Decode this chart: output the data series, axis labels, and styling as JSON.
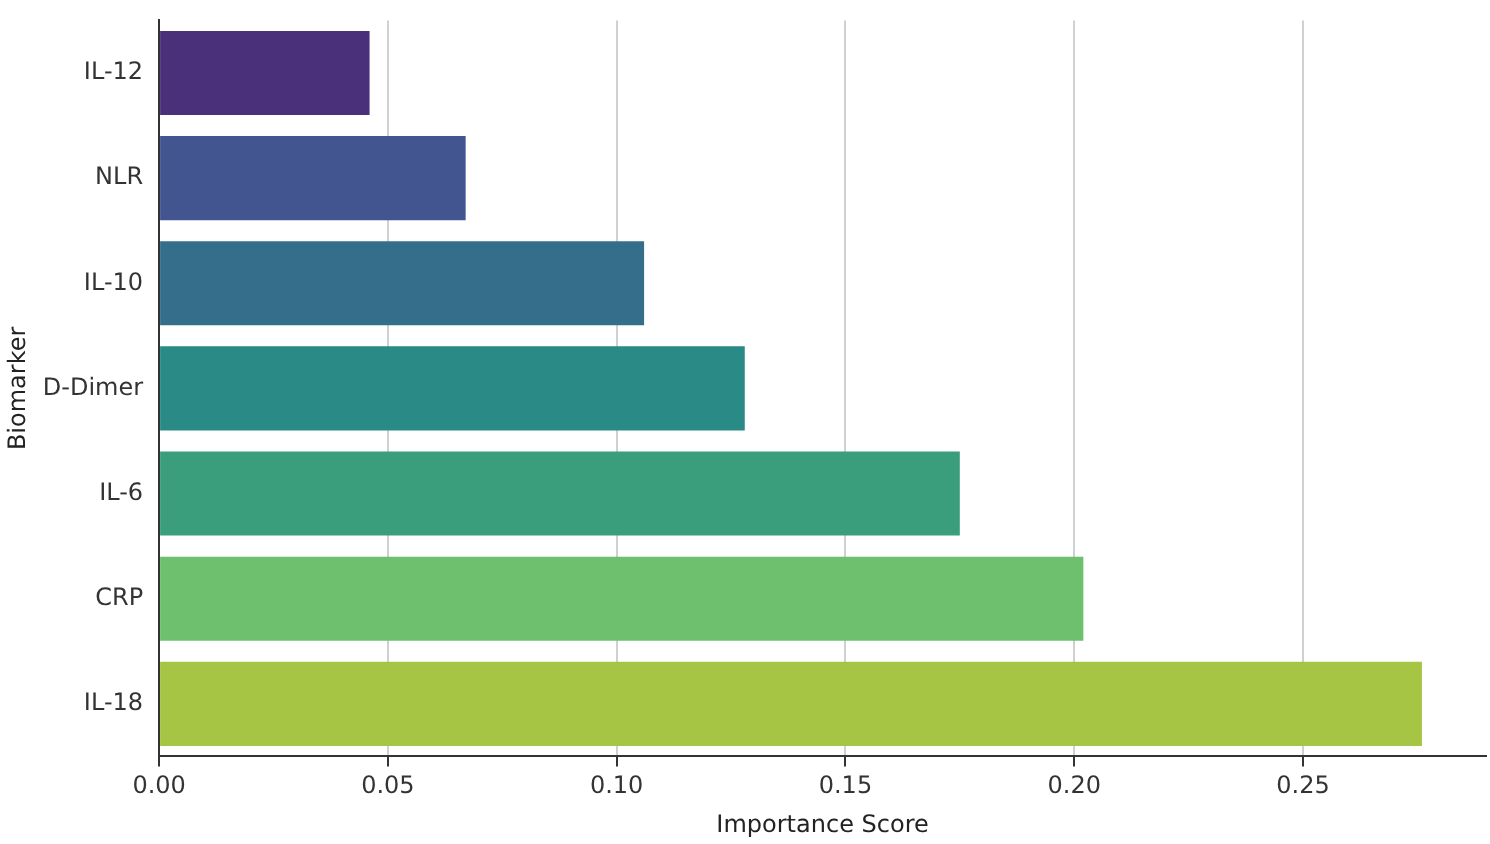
{
  "chart_data": {
    "type": "bar",
    "orientation": "horizontal",
    "xlabel": "Importance Score",
    "ylabel": "Biomarker",
    "categories": [
      "IL-12",
      "NLR",
      "IL-10",
      "D-Dimer",
      "IL-6",
      "CRP",
      "IL-18"
    ],
    "values": [
      0.046,
      0.067,
      0.106,
      0.128,
      0.175,
      0.202,
      0.276
    ],
    "colors": [
      "#4a2f7a",
      "#435590",
      "#356e8a",
      "#2a8a85",
      "#3a9e7c",
      "#6ebf6e",
      "#a6c544"
    ],
    "xlim": [
      0,
      0.29
    ],
    "xticks": [
      {
        "value": 0,
        "label": "0.00"
      },
      {
        "value": 0.05,
        "label": "0.05"
      },
      {
        "value": 0.1,
        "label": "0.10"
      },
      {
        "value": 0.15,
        "label": "0.15"
      },
      {
        "value": 0.2,
        "label": "0.20"
      },
      {
        "value": 0.25,
        "label": "0.25"
      }
    ],
    "grid": "x",
    "legend": false
  }
}
